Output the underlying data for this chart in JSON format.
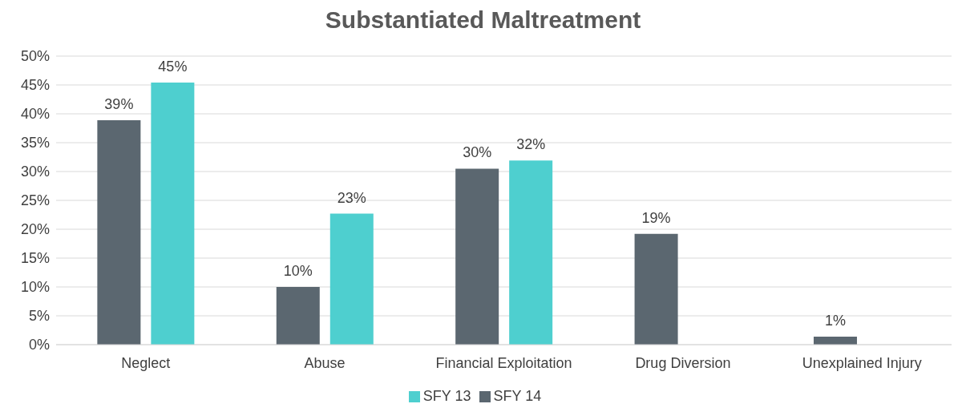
{
  "chart_data": {
    "type": "bar",
    "title": "Substantiated Maltreatment",
    "categories": [
      "Neglect",
      "Abuse",
      "Financial Exploitation",
      "Drug Diversion",
      "Unexplained Injury"
    ],
    "series": [
      {
        "name": "SFY 14",
        "color": "#5b6770",
        "values": [
          38.9,
          10,
          30.5,
          19.2,
          1.4
        ],
        "value_labels": [
          "39%",
          "10%",
          "30%",
          "19%",
          "1%"
        ]
      },
      {
        "name": "SFY 13",
        "color": "#4ecfcf",
        "values": [
          45.4,
          22.7,
          31.9,
          null,
          null
        ],
        "value_labels": [
          "45%",
          "23%",
          "32%",
          null,
          null
        ]
      }
    ],
    "ylim": [
      0,
      50
    ],
    "yticks": [
      {
        "value": 0,
        "label": "0%"
      },
      {
        "value": 5,
        "label": "5%"
      },
      {
        "value": 10,
        "label": "10%"
      },
      {
        "value": 15,
        "label": "15%"
      },
      {
        "value": 20,
        "label": "20%"
      },
      {
        "value": 25,
        "label": "25%"
      },
      {
        "value": 30,
        "label": "30%"
      },
      {
        "value": 35,
        "label": "35%"
      },
      {
        "value": 40,
        "label": "40%"
      },
      {
        "value": 45,
        "label": "45%"
      },
      {
        "value": 50,
        "label": "50%"
      }
    ],
    "grid": "y",
    "legend": "bottom"
  }
}
